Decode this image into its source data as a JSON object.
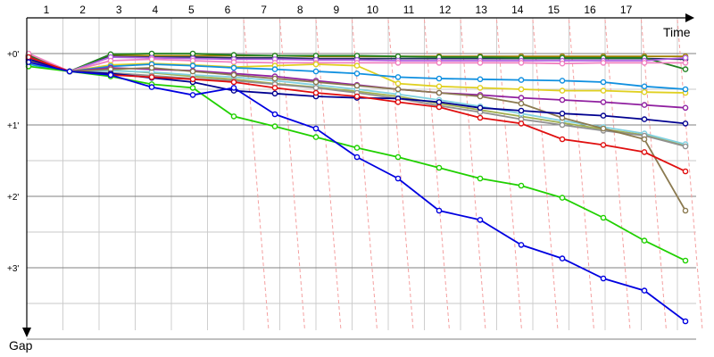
{
  "chart_data": {
    "type": "line",
    "x_axis_title": "Time",
    "y_axis_title": "Gap",
    "lap_ticks": [
      "1",
      "2",
      "3",
      "4",
      "5",
      "6",
      "7",
      "8",
      "9",
      "10",
      "11",
      "12",
      "13",
      "14",
      "15",
      "16",
      "17"
    ],
    "y_ticks": [
      {
        "value": 0,
        "label": "+0'"
      },
      {
        "value": 1,
        "label": "+1'"
      },
      {
        "value": 2,
        "label": "+2'"
      },
      {
        "value": 3,
        "label": "+3'"
      }
    ],
    "ylim": [
      0,
      4
    ],
    "grid": true,
    "series": [
      {
        "color": "#0000e0",
        "values": [
          0.12,
          0.25,
          0.3,
          0.47,
          0.58,
          0.48,
          0.85,
          1.05,
          1.45,
          1.75,
          2.2,
          2.33,
          2.68,
          2.87,
          3.15,
          3.32,
          3.75
        ]
      },
      {
        "color": "#20d000",
        "values": [
          0.18,
          0.25,
          0.32,
          0.43,
          0.48,
          0.88,
          1.02,
          1.17,
          1.32,
          1.45,
          1.6,
          1.75,
          1.85,
          2.02,
          2.3,
          2.62,
          2.9
        ]
      },
      {
        "color": "#e01010",
        "values": [
          0.05,
          0.25,
          0.3,
          0.33,
          0.36,
          0.4,
          0.48,
          0.55,
          0.6,
          0.68,
          0.75,
          0.9,
          0.98,
          1.2,
          1.28,
          1.38,
          1.65
        ]
      },
      {
        "color": "#000090",
        "values": [
          0.08,
          0.25,
          0.28,
          0.34,
          0.4,
          0.52,
          0.56,
          0.6,
          0.62,
          0.63,
          0.68,
          0.76,
          0.8,
          0.84,
          0.87,
          0.92,
          0.98
        ]
      },
      {
        "color": "#8b7a50",
        "values": [
          0.1,
          0.25,
          0.22,
          0.2,
          0.25,
          0.3,
          0.35,
          0.4,
          0.45,
          0.5,
          0.55,
          0.6,
          0.7,
          0.9,
          1.05,
          1.2,
          2.2
        ]
      },
      {
        "color": "#909090",
        "values": [
          0.06,
          0.25,
          0.27,
          0.31,
          0.35,
          0.38,
          0.43,
          0.48,
          0.55,
          0.63,
          0.73,
          0.82,
          0.92,
          1.0,
          1.08,
          1.15,
          1.3
        ]
      },
      {
        "color": "#80d0e0",
        "values": [
          0.09,
          0.25,
          0.24,
          0.26,
          0.3,
          0.33,
          0.38,
          0.44,
          0.5,
          0.57,
          0.65,
          0.74,
          0.84,
          0.94,
          1.03,
          1.12,
          1.27
        ]
      },
      {
        "color": "#a0b050",
        "values": [
          0.11,
          0.25,
          0.23,
          0.27,
          0.32,
          0.36,
          0.42,
          0.47,
          0.53,
          0.6,
          0.7,
          0.79,
          0.88,
          0.97,
          1.06,
          1.14,
          1.29
        ]
      },
      {
        "color": "#9020a0",
        "values": [
          0.07,
          0.25,
          0.2,
          0.22,
          0.24,
          0.28,
          0.32,
          0.38,
          0.44,
          0.5,
          0.55,
          0.58,
          0.62,
          0.65,
          0.68,
          0.72,
          0.76
        ]
      },
      {
        "color": "#1090e0",
        "values": [
          0.15,
          0.25,
          0.18,
          0.15,
          0.17,
          0.2,
          0.22,
          0.25,
          0.28,
          0.33,
          0.35,
          0.36,
          0.37,
          0.38,
          0.4,
          0.46,
          0.5
        ]
      },
      {
        "color": "#e0d020",
        "values": [
          0.13,
          0.25,
          0.16,
          0.14,
          0.16,
          0.19,
          0.17,
          0.15,
          0.17,
          0.42,
          0.46,
          0.48,
          0.5,
          0.52,
          0.52,
          0.54,
          0.55
        ]
      },
      {
        "color": "#f080c0",
        "values": [
          0.0,
          0.25,
          0.1,
          0.08,
          0.1,
          0.12,
          0.13,
          0.13,
          0.13,
          0.13,
          0.13,
          0.13,
          0.13,
          0.14,
          0.13,
          0.13,
          0.13
        ]
      },
      {
        "color": "#b060e0",
        "values": [
          0.05,
          0.25,
          0.05,
          0.06,
          0.07,
          0.08,
          0.08,
          0.09,
          0.09,
          0.1,
          0.1,
          0.1,
          0.1,
          0.1,
          0.1,
          0.1,
          0.06
        ]
      },
      {
        "color": "#208020",
        "values": [
          0.02,
          0.25,
          0.01,
          0.0,
          0.0,
          0.02,
          0.03,
          0.03,
          0.03,
          0.04,
          0.05,
          0.05,
          0.06,
          0.06,
          0.06,
          0.06,
          0.22
        ]
      },
      {
        "color": "#203060",
        "values": [
          0.04,
          0.25,
          0.04,
          0.05,
          0.05,
          0.06,
          0.06,
          0.07,
          0.07,
          0.07,
          0.07,
          0.07,
          0.07,
          0.07,
          0.07,
          0.07,
          0.08
        ]
      },
      {
        "color": "#a08000",
        "values": [
          0.03,
          0.25,
          0.02,
          0.03,
          0.03,
          0.03,
          0.03,
          0.04,
          0.04,
          0.04,
          0.04,
          0.04,
          0.04,
          0.04,
          0.04,
          0.04,
          0.04
        ]
      }
    ]
  }
}
